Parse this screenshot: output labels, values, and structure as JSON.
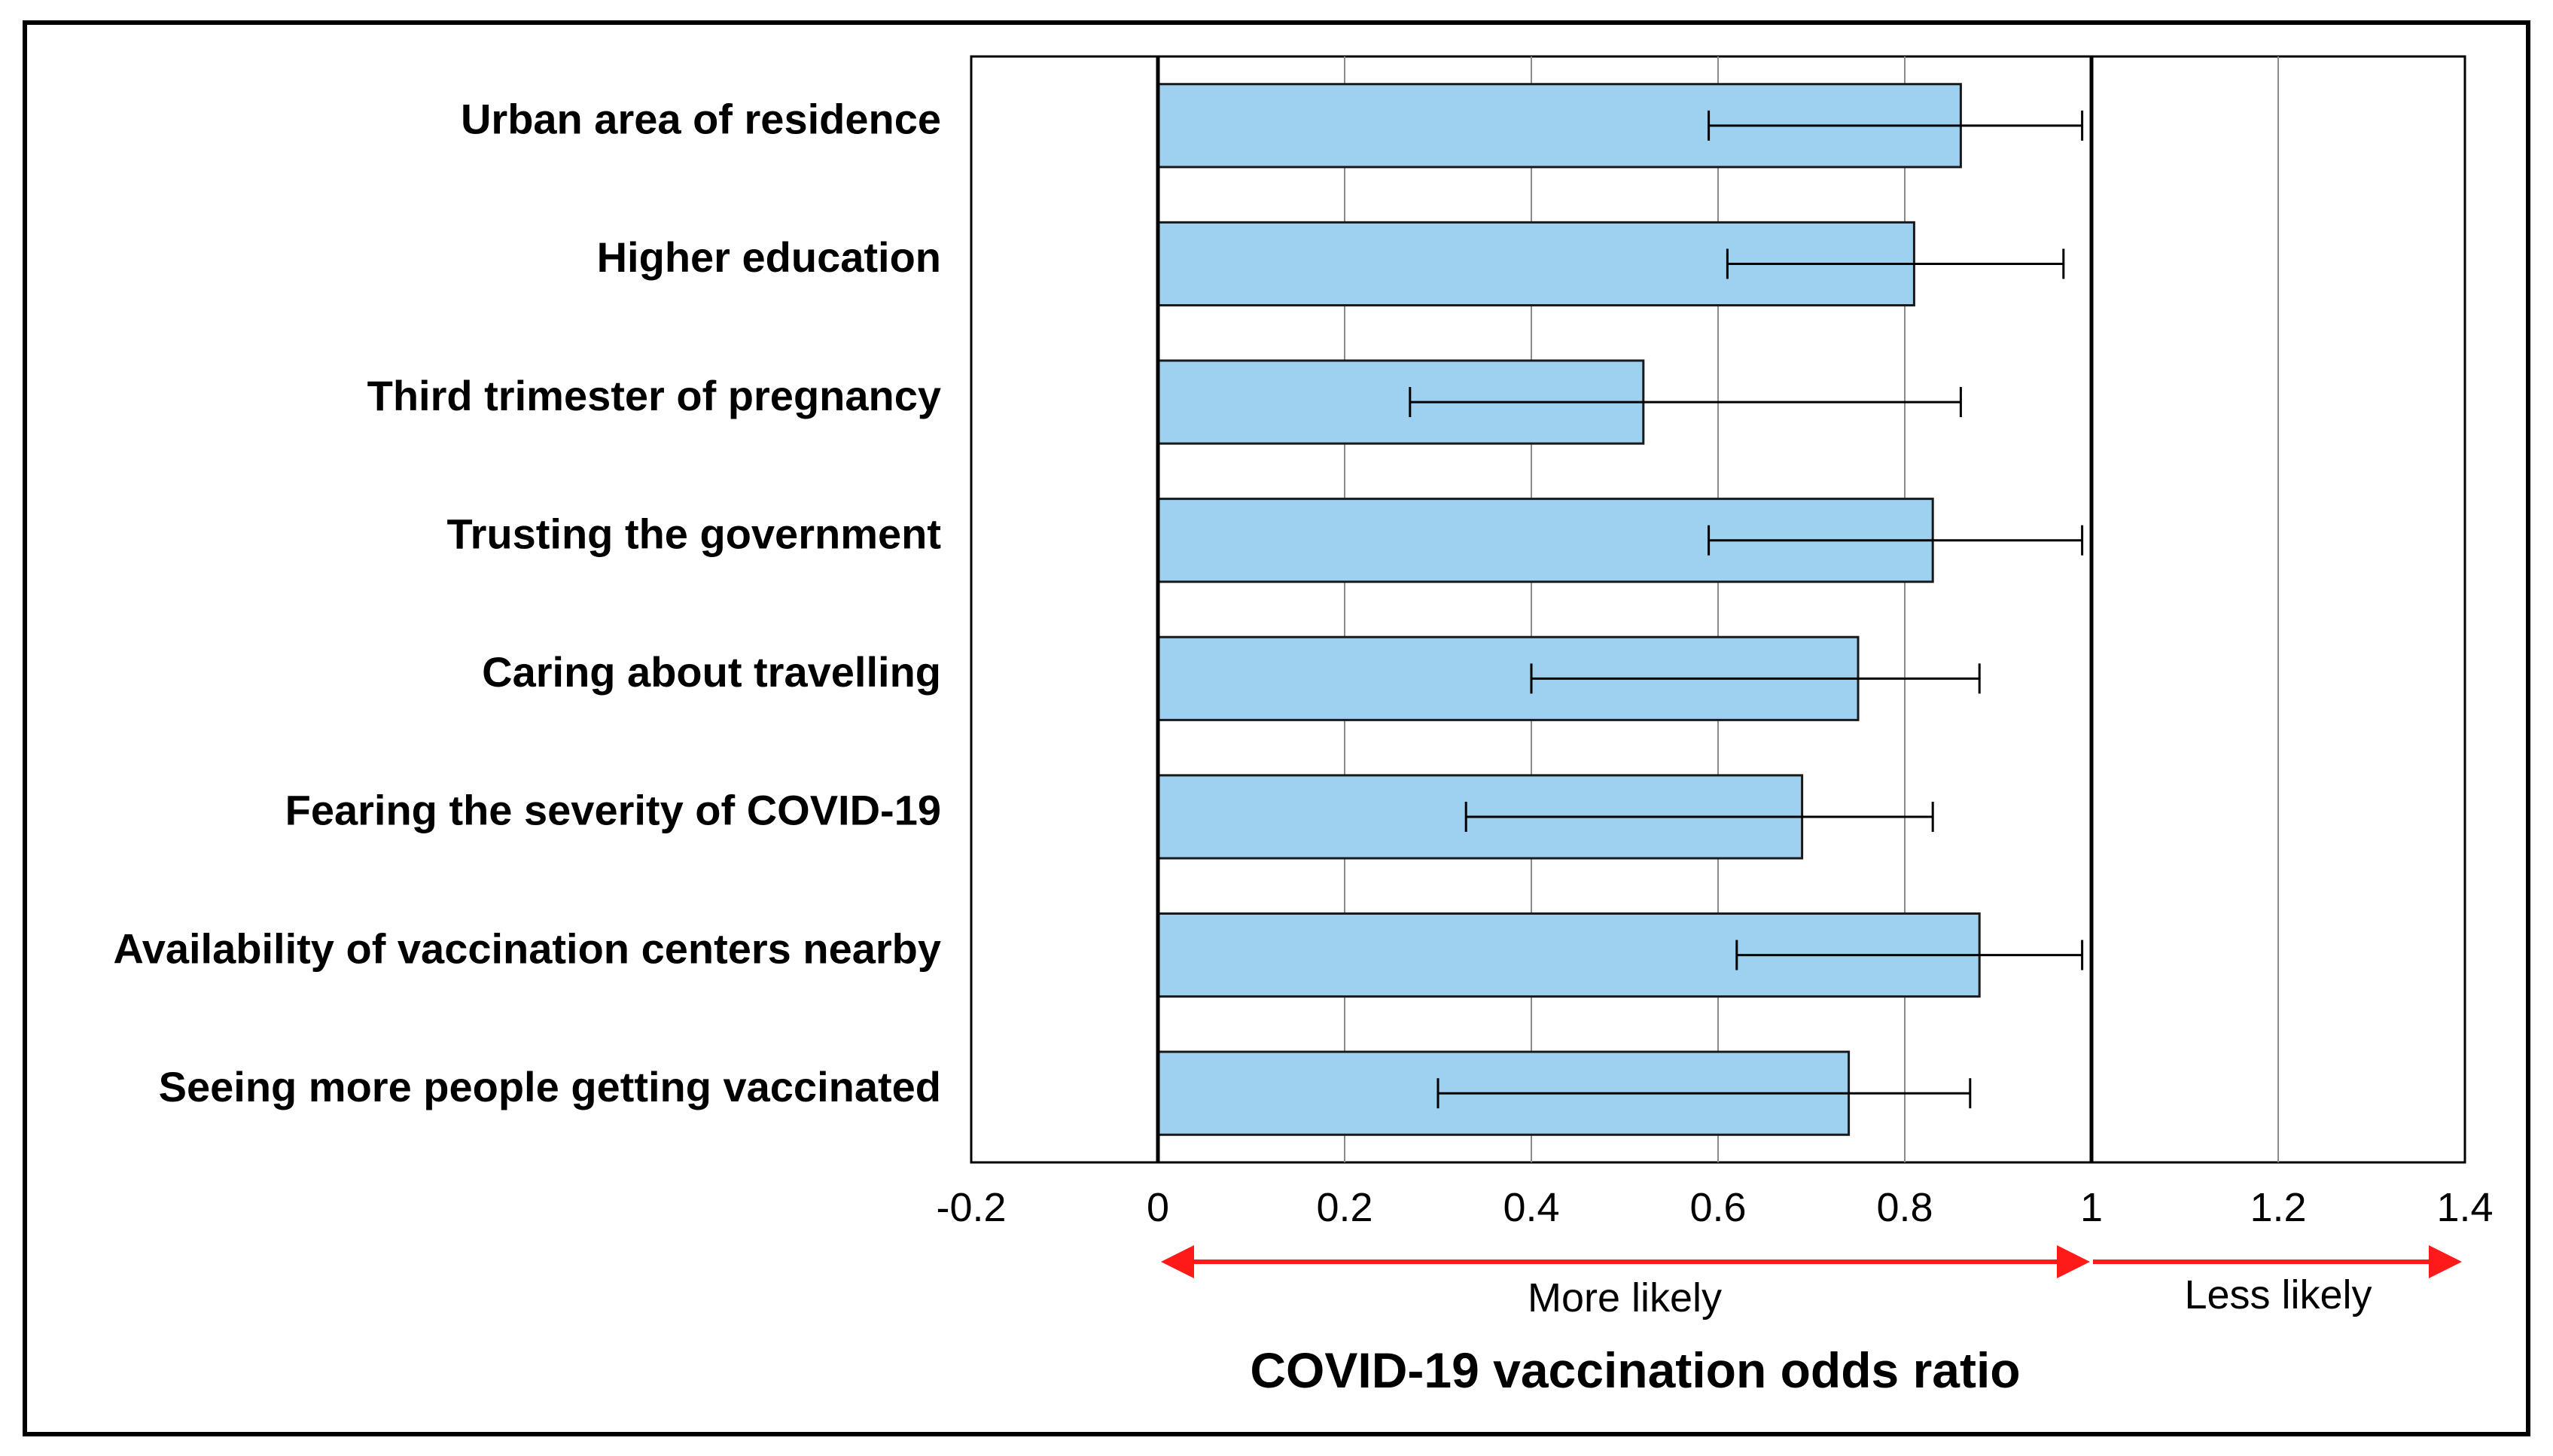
{
  "chart_data": {
    "type": "bar",
    "orientation": "horizontal",
    "title": "",
    "xlabel": "COVID-19 vaccination odds ratio",
    "ylabel": "",
    "xlim": [
      -0.2,
      1.4
    ],
    "x_ticks": [
      "-0.2",
      "0",
      "0.2",
      "0.4",
      "0.6",
      "0.8",
      "1",
      "1.2",
      "1.4"
    ],
    "x_tick_values": [
      -0.2,
      0,
      0.2,
      0.4,
      0.6,
      0.8,
      1,
      1.2,
      1.4
    ],
    "grid": true,
    "reference_lines": [
      0,
      1
    ],
    "categories": [
      "Urban area of residence",
      "Higher education",
      "Third trimester of pregnancy",
      "Trusting the government",
      "Caring about travelling",
      "Fearing the severity of COVID-19",
      "Availability of vaccination centers nearby",
      "Seeing more people getting vaccinated"
    ],
    "values": [
      0.86,
      0.81,
      0.52,
      0.83,
      0.75,
      0.69,
      0.88,
      0.74
    ],
    "ci_lower": [
      0.59,
      0.61,
      0.27,
      0.59,
      0.4,
      0.33,
      0.62,
      0.3
    ],
    "ci_upper": [
      0.99,
      0.97,
      0.86,
      0.99,
      0.88,
      0.83,
      0.99,
      0.87
    ],
    "direction_labels": {
      "more_likely": "More likely",
      "less_likely": "Less likely"
    },
    "colors": {
      "bar_fill": "#9ed0f0",
      "bar_stroke": "#1a1a1a",
      "arrow": "#ff1a1a",
      "grid": "#8c8c8c",
      "frame": "#000000"
    }
  }
}
